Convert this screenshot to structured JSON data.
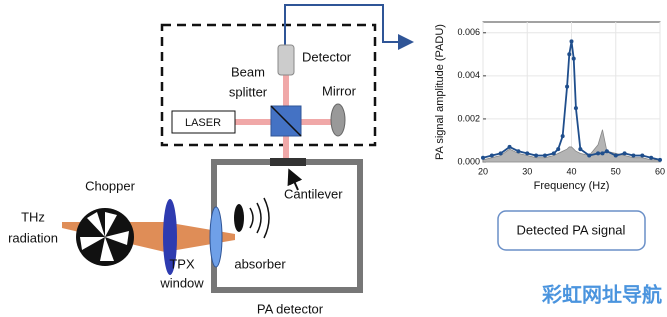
{
  "diagram": {
    "detector": "Detector",
    "beam_splitter": [
      "Beam",
      "splitter"
    ],
    "mirror": "Mirror",
    "laser": "LASER",
    "cantilever": "Cantilever",
    "chopper": "Chopper",
    "thz_radiation": [
      "THz",
      "radiation"
    ],
    "tpx_window": [
      "TPX",
      "window"
    ],
    "absorber": "absorber",
    "pa_detector": "PA detector",
    "detected_signal": "Detected PA signal",
    "watermark": "彩虹网址导航"
  },
  "chart_data": {
    "type": "line",
    "x_label": "Frequency (Hz)",
    "y_label": "PA signal amplitude (PADU)",
    "x": [
      20,
      22,
      24,
      26,
      28,
      30,
      32,
      34,
      36,
      37,
      38,
      39,
      39.5,
      40,
      40.5,
      41,
      42,
      44,
      46,
      47,
      48,
      50,
      52,
      54,
      56,
      58,
      60
    ],
    "series": [
      {
        "kind": "area",
        "color": "#b4b4b4",
        "values": [
          0.0001,
          0.0002,
          0.0003,
          0.0006,
          0.0004,
          0.0003,
          0.0002,
          0.0002,
          0.0003,
          0.0004,
          0.0005,
          0.0006,
          0.0007,
          0.0007,
          0.0006,
          0.0005,
          0.0004,
          0.0003,
          0.0008,
          0.0015,
          0.0005,
          0.0004,
          0.0003,
          0.0002,
          0.0002,
          0.0001,
          0.0001
        ]
      },
      {
        "kind": "line",
        "color": "#1f4e8c",
        "values": [
          0.0002,
          0.0003,
          0.0004,
          0.0007,
          0.0005,
          0.0004,
          0.0003,
          0.0003,
          0.0004,
          0.0006,
          0.0012,
          0.0035,
          0.005,
          0.0056,
          0.0048,
          0.0025,
          0.0006,
          0.0003,
          0.0004,
          0.0004,
          0.0005,
          0.0003,
          0.0004,
          0.0003,
          0.0003,
          0.0002,
          0.0001
        ]
      }
    ],
    "xlim": [
      20,
      60
    ],
    "xticks": [
      20,
      30,
      40,
      50,
      60
    ],
    "ylim": [
      0,
      0.0065
    ],
    "yticks": [
      {
        "value": 0,
        "label": "0.000"
      },
      {
        "value": 0.002,
        "label": "0.002"
      },
      {
        "value": 0.004,
        "label": "0.004"
      },
      {
        "value": 0.006,
        "label": "0.006"
      }
    ]
  }
}
